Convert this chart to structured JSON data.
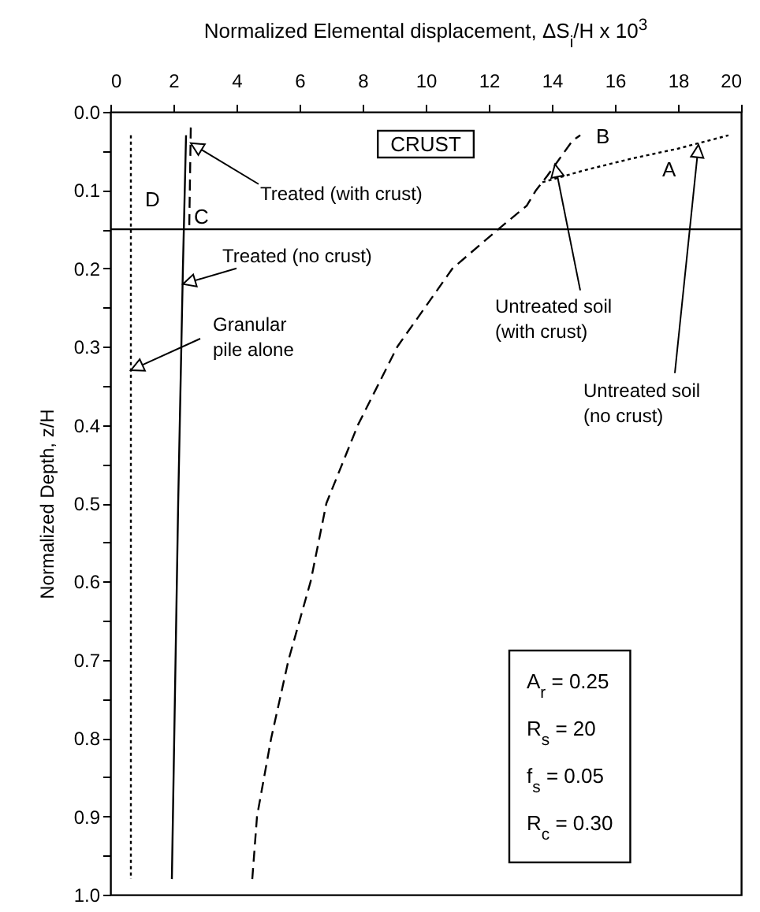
{
  "chart_data": {
    "type": "line",
    "xlabel": "Normalized Elemental displacement,  ΔS$_{i}$/H x 10$^{3}$",
    "ylabel": "Normalized Depth, z/H",
    "xlim": [
      0,
      20
    ],
    "xticks": [
      0,
      2,
      4,
      6,
      8,
      10,
      12,
      14,
      16,
      18,
      20
    ],
    "ylim": [
      1.0,
      0.0
    ],
    "yticks": [
      {
        "value": 0,
        "label": "0.0"
      },
      {
        "value": 0.05,
        "label": null
      },
      0.1,
      {
        "value": 0.15,
        "label": null
      },
      0.2,
      {
        "value": 0.25,
        "label": null
      },
      0.3,
      {
        "value": 0.35,
        "label": null
      },
      0.4,
      {
        "value": 0.45,
        "label": null
      },
      0.5,
      {
        "value": 0.55,
        "label": null
      },
      0.6,
      {
        "value": 0.65,
        "label": null
      },
      0.7,
      {
        "value": 0.75,
        "label": null
      },
      0.8,
      {
        "value": 0.85,
        "label": null
      },
      0.9,
      {
        "value": 0.95,
        "label": null
      },
      {
        "value": 1.0,
        "label": "1.0"
      }
    ],
    "grid": false,
    "legend": false,
    "marker": "none",
    "series": [
      {
        "name": "D",
        "color": "#000000",
        "line_style": "dotted",
        "x": [
          0.65,
          0.65
        ],
        "values": [
          0.03,
          0.98
        ]
      },
      {
        "name": "C",
        "color": "#000000",
        "line_style": "solid",
        "x": [
          2.4,
          2.3,
          2.15,
          1.95
        ],
        "values": [
          0.03,
          0.2,
          0.5,
          0.98
        ]
      },
      {
        "color": "#000000",
        "line_style": "dashed",
        "x": [
          2.55,
          2.5
        ],
        "values": [
          0.02,
          0.15
        ]
      },
      {
        "name": "B",
        "color": "#000000",
        "line_style": "dashed",
        "x": [
          4.5,
          4.65,
          5.1,
          5.65,
          6.35,
          6.85,
          7.85,
          9.1,
          10.85,
          12.3,
          13.2,
          13.5,
          13.85,
          14.65,
          14.9
        ],
        "values": [
          0.98,
          0.9,
          0.8,
          0.7,
          0.6,
          0.5,
          0.4,
          0.3,
          0.2,
          0.15,
          0.12,
          0.1,
          0.082,
          0.037,
          0.03
        ]
      },
      {
        "name": "A",
        "color": "#000000",
        "line_style": "dotted",
        "x": [
          13.7,
          15.0,
          16.5,
          18.0,
          19.6
        ],
        "values": [
          0.09,
          0.075,
          0.06,
          0.047,
          0.03
        ]
      }
    ],
    "ref_lines": [
      {
        "axis": "y",
        "value": 0.15,
        "color": "#000000"
      }
    ],
    "annotations": [
      "CRUST",
      {
        "text": "Treated (with crust)",
        "x": 2.55,
        "y": 0.04
      },
      {
        "text": "Treated (no crust)",
        "x": 2.3,
        "y": 0.22
      },
      {
        "text": "Granular\npile alone",
        "x": 0.65,
        "y": 0.33
      },
      {
        "text": "Untreated soil\n(with crust)",
        "x": 14.1,
        "y": 0.067
      },
      {
        "text": "Untreated soil\n(no crust)",
        "x": 18.65,
        "y": 0.042
      },
      "A$_{r}$  =  0.25",
      "R$_{s}$  =  20",
      "f$_{s}$  =  0.05",
      "R$_{c}$  =   0.30"
    ]
  }
}
